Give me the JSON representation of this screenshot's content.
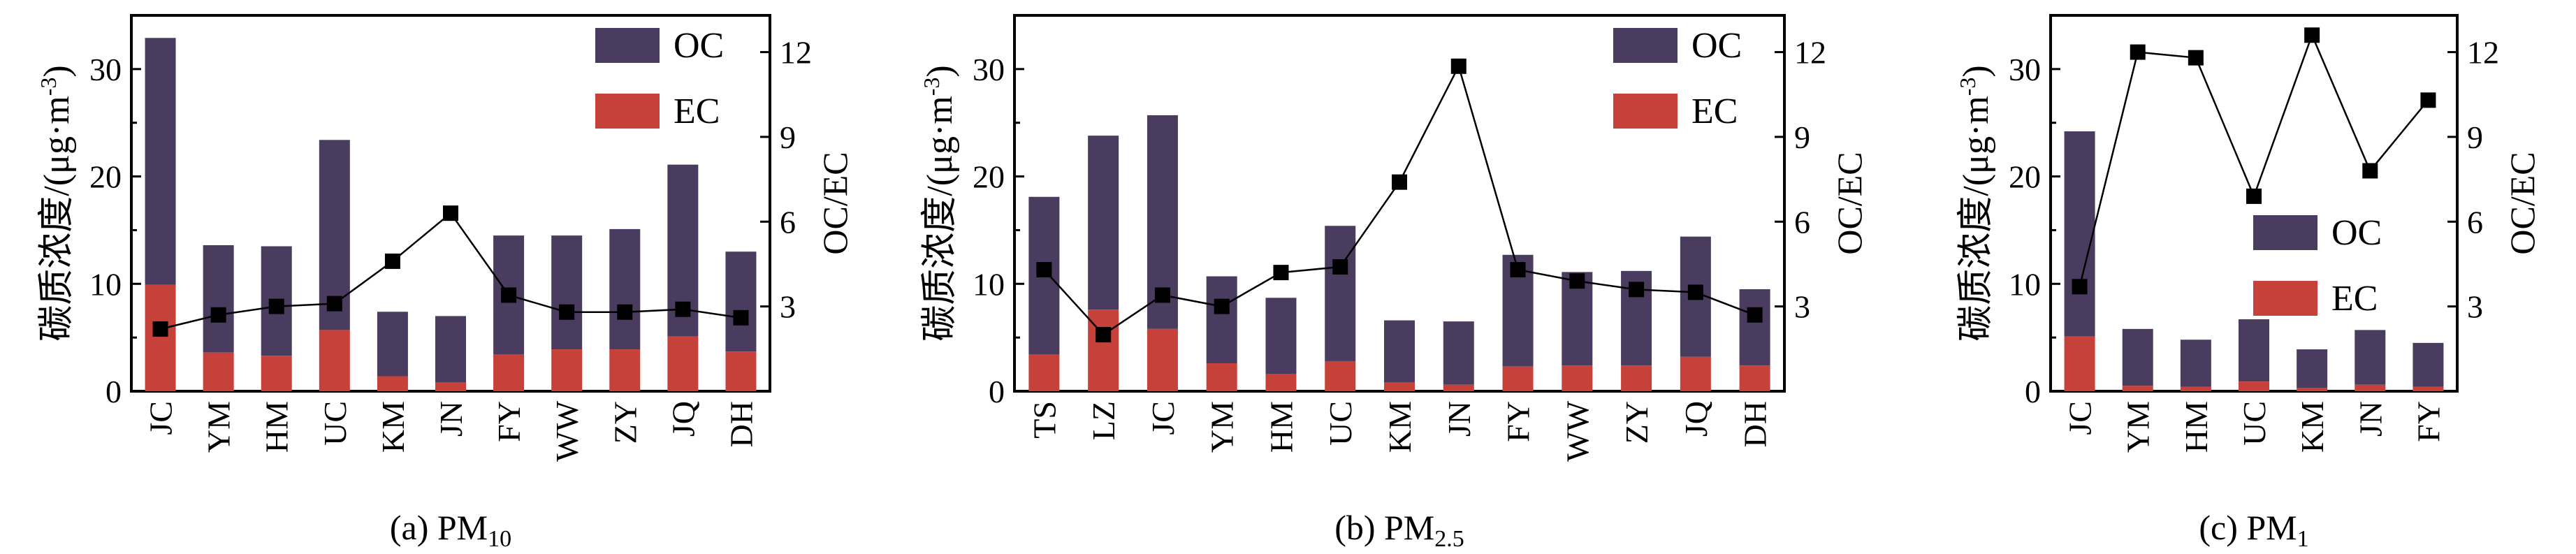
{
  "colors": {
    "oc": "#4a3c5e",
    "ec": "#c6413a",
    "line": "#000000"
  },
  "chart_data": [
    {
      "type": "bar",
      "stacked": true,
      "title": "(a) PM10",
      "caption_main": "(a) PM",
      "caption_sub": "10",
      "ylabel_left": "碳质浓度/(μg·m⁻³)",
      "ylabel_left_base": "碳质浓度/(μg·m",
      "ylabel_left_sup": "-3",
      "ylabel_left_tail": ")",
      "ylabel_right": "OC/EC",
      "ylim_left": [
        0,
        35
      ],
      "ylim_right": [
        0,
        13.3
      ],
      "yticks_left": [
        "0",
        "10",
        "20",
        "30"
      ],
      "yticks_right": [
        "3",
        "6",
        "9",
        "12"
      ],
      "legend_position": "top-right",
      "categories": [
        "JC",
        "YM",
        "HM",
        "UC",
        "KM",
        "JN",
        "FY",
        "WW",
        "ZY",
        "JQ",
        "DH"
      ],
      "series": [
        {
          "name": "OC",
          "values": [
            23,
            10,
            10.2,
            17.7,
            6,
            6.2,
            11.1,
            10.6,
            11.2,
            16,
            9.3
          ]
        },
        {
          "name": "EC",
          "values": [
            9.9,
            3.6,
            3.3,
            5.7,
            1.4,
            0.8,
            3.4,
            3.9,
            3.9,
            5.1,
            3.7
          ]
        },
        {
          "name": "OC/EC",
          "line": true,
          "values": [
            2.2,
            2.7,
            3,
            3.1,
            4.6,
            6.3,
            3.4,
            2.8,
            2.8,
            2.9,
            2.6
          ]
        }
      ],
      "legend": {
        "oc": "OC",
        "ec": "EC"
      }
    },
    {
      "type": "bar",
      "stacked": true,
      "title": "(b) PM2.5",
      "caption_main": "(b) PM",
      "caption_sub": "2.5",
      "ylabel_left": "碳质浓度/(μg·m⁻³)",
      "ylabel_left_base": "碳质浓度/(μg·m",
      "ylabel_left_sup": "-3",
      "ylabel_left_tail": ")",
      "ylabel_right": "OC/EC",
      "ylim_left": [
        0,
        35
      ],
      "ylim_right": [
        0,
        13.3
      ],
      "yticks_left": [
        "0",
        "10",
        "20",
        "30"
      ],
      "yticks_right": [
        "3",
        "6",
        "9",
        "12"
      ],
      "legend_position": "top-right",
      "categories": [
        "TS",
        "LZ",
        "JC",
        "YM",
        "HM",
        "UC",
        "KM",
        "JN",
        "FY",
        "WW",
        "ZY",
        "JQ",
        "DH"
      ],
      "series": [
        {
          "name": "OC",
          "values": [
            14.7,
            16.2,
            19.9,
            8.1,
            7.1,
            12.6,
            5.8,
            5.9,
            10.4,
            8.7,
            8.8,
            11.2,
            7.1
          ]
        },
        {
          "name": "EC",
          "values": [
            3.4,
            7.6,
            5.8,
            2.6,
            1.6,
            2.8,
            0.8,
            0.6,
            2.3,
            2.4,
            2.4,
            3.2,
            2.4
          ]
        },
        {
          "name": "OC/EC",
          "line": true,
          "values": [
            4.3,
            2,
            3.4,
            3,
            4.2,
            4.4,
            7.4,
            11.5,
            4.3,
            3.9,
            3.6,
            3.5,
            2.7
          ]
        }
      ],
      "legend": {
        "oc": "OC",
        "ec": "EC"
      }
    },
    {
      "type": "bar",
      "stacked": true,
      "title": "(c) PM1",
      "caption_main": "(c) PM",
      "caption_sub": "1",
      "ylabel_left": "碳质浓度/(μg·m⁻³)",
      "ylabel_left_base": "碳质浓度/(μg·m",
      "ylabel_left_sup": "-3",
      "ylabel_left_tail": ")",
      "ylabel_right": "OC/EC",
      "ylim_left": [
        0,
        35
      ],
      "ylim_right": [
        0,
        13.3
      ],
      "yticks_left": [
        "0",
        "10",
        "20",
        "30"
      ],
      "yticks_right": [
        "3",
        "6",
        "9",
        "12"
      ],
      "legend_position": "right",
      "categories": [
        "JC",
        "YM",
        "HM",
        "UC",
        "KM",
        "JN",
        "FY"
      ],
      "series": [
        {
          "name": "OC",
          "values": [
            19.1,
            5.3,
            4.4,
            5.8,
            3.6,
            5.1,
            4.1
          ]
        },
        {
          "name": "EC",
          "values": [
            5.1,
            0.5,
            0.4,
            0.9,
            0.3,
            0.6,
            0.4
          ]
        },
        {
          "name": "OC/EC",
          "line": true,
          "values": [
            3.7,
            12,
            11.8,
            6.9,
            12.6,
            7.8,
            10.3
          ]
        }
      ],
      "legend": {
        "oc": "OC",
        "ec": "EC"
      }
    }
  ]
}
